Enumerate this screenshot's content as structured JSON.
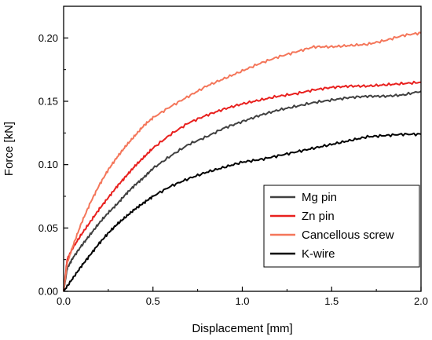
{
  "chart_data": {
    "type": "line",
    "xlabel": "Displacement [mm]",
    "ylabel": "Force [kN]",
    "xlim": [
      0,
      2.0
    ],
    "ylim": [
      0,
      0.225
    ],
    "xticks": [
      "0.0",
      "0.5",
      "1.0",
      "1.5",
      "2.0"
    ],
    "yticks": [
      "0.00",
      "0.05",
      "0.10",
      "0.15",
      "0.20"
    ],
    "grid": false,
    "legend_position": "lower-right",
    "series": [
      {
        "name": "Mg pin",
        "color": "#404040",
        "points": [
          [
            0,
            0
          ],
          [
            0.02,
            0.018
          ],
          [
            0.05,
            0.026
          ],
          [
            0.1,
            0.036
          ],
          [
            0.15,
            0.045
          ],
          [
            0.2,
            0.054
          ],
          [
            0.25,
            0.062
          ],
          [
            0.3,
            0.069
          ],
          [
            0.35,
            0.077
          ],
          [
            0.4,
            0.084
          ],
          [
            0.45,
            0.09
          ],
          [
            0.5,
            0.097
          ],
          [
            0.6,
            0.107
          ],
          [
            0.7,
            0.116
          ],
          [
            0.8,
            0.122
          ],
          [
            0.9,
            0.129
          ],
          [
            1.0,
            0.134
          ],
          [
            1.1,
            0.139
          ],
          [
            1.2,
            0.143
          ],
          [
            1.3,
            0.146
          ],
          [
            1.4,
            0.149
          ],
          [
            1.5,
            0.151
          ],
          [
            1.6,
            0.153
          ],
          [
            1.7,
            0.154
          ],
          [
            1.8,
            0.154
          ],
          [
            1.9,
            0.155
          ],
          [
            2.0,
            0.158
          ]
        ]
      },
      {
        "name": "Zn pin",
        "color": "#e8201e",
        "points": [
          [
            0,
            0
          ],
          [
            0.02,
            0.025
          ],
          [
            0.05,
            0.034
          ],
          [
            0.1,
            0.045
          ],
          [
            0.15,
            0.055
          ],
          [
            0.2,
            0.065
          ],
          [
            0.25,
            0.074
          ],
          [
            0.3,
            0.083
          ],
          [
            0.35,
            0.091
          ],
          [
            0.4,
            0.099
          ],
          [
            0.45,
            0.106
          ],
          [
            0.5,
            0.113
          ],
          [
            0.6,
            0.124
          ],
          [
            0.7,
            0.133
          ],
          [
            0.8,
            0.139
          ],
          [
            0.9,
            0.144
          ],
          [
            1.0,
            0.148
          ],
          [
            1.1,
            0.151
          ],
          [
            1.2,
            0.154
          ],
          [
            1.3,
            0.156
          ],
          [
            1.4,
            0.159
          ],
          [
            1.5,
            0.161
          ],
          [
            1.6,
            0.162
          ],
          [
            1.7,
            0.162
          ],
          [
            1.8,
            0.163
          ],
          [
            1.9,
            0.164
          ],
          [
            2.0,
            0.165
          ]
        ]
      },
      {
        "name": "Cancellous screw",
        "color": "#f4765a",
        "points": [
          [
            0,
            0
          ],
          [
            0.02,
            0.022
          ],
          [
            0.05,
            0.035
          ],
          [
            0.1,
            0.054
          ],
          [
            0.15,
            0.07
          ],
          [
            0.2,
            0.084
          ],
          [
            0.25,
            0.096
          ],
          [
            0.3,
            0.106
          ],
          [
            0.35,
            0.115
          ],
          [
            0.4,
            0.123
          ],
          [
            0.45,
            0.131
          ],
          [
            0.5,
            0.137
          ],
          [
            0.6,
            0.146
          ],
          [
            0.7,
            0.154
          ],
          [
            0.8,
            0.162
          ],
          [
            0.9,
            0.168
          ],
          [
            1.0,
            0.174
          ],
          [
            1.1,
            0.18
          ],
          [
            1.2,
            0.185
          ],
          [
            1.3,
            0.189
          ],
          [
            1.4,
            0.193
          ],
          [
            1.5,
            0.193
          ],
          [
            1.6,
            0.194
          ],
          [
            1.7,
            0.195
          ],
          [
            1.8,
            0.198
          ],
          [
            1.9,
            0.202
          ],
          [
            2.0,
            0.204
          ]
        ]
      },
      {
        "name": "K-wire",
        "color": "#000000",
        "points": [
          [
            0,
            0
          ],
          [
            0.05,
            0.01
          ],
          [
            0.1,
            0.02
          ],
          [
            0.15,
            0.029
          ],
          [
            0.2,
            0.038
          ],
          [
            0.25,
            0.046
          ],
          [
            0.3,
            0.053
          ],
          [
            0.35,
            0.059
          ],
          [
            0.4,
            0.065
          ],
          [
            0.45,
            0.07
          ],
          [
            0.5,
            0.075
          ],
          [
            0.6,
            0.083
          ],
          [
            0.7,
            0.089
          ],
          [
            0.8,
            0.094
          ],
          [
            0.9,
            0.098
          ],
          [
            1.0,
            0.102
          ],
          [
            1.1,
            0.104
          ],
          [
            1.2,
            0.107
          ],
          [
            1.3,
            0.11
          ],
          [
            1.4,
            0.113
          ],
          [
            1.5,
            0.116
          ],
          [
            1.6,
            0.119
          ],
          [
            1.7,
            0.122
          ],
          [
            1.8,
            0.123
          ],
          [
            1.9,
            0.124
          ],
          [
            2.0,
            0.124
          ]
        ]
      }
    ]
  }
}
